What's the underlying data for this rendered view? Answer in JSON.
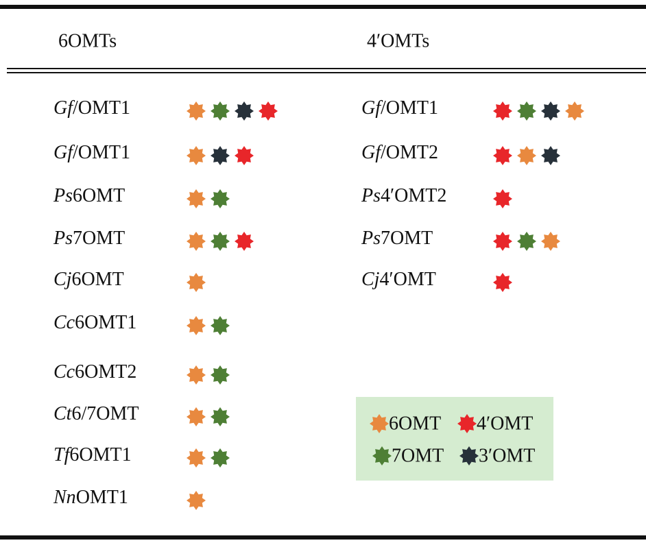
{
  "header": {
    "left": "6OMTs",
    "right": "4′OMTs"
  },
  "legend": [
    {
      "label": "6OMT",
      "color": "#e8893f"
    },
    {
      "label": "4′OMT",
      "color": "#e8262a"
    },
    {
      "label": "7OMT",
      "color": "#4e7f35"
    },
    {
      "label": "3′OMT",
      "color": "#27313a"
    }
  ],
  "left_rows": [
    {
      "name": [
        {
          "italic": "Gf"
        },
        {
          "text": "/OMT1"
        }
      ],
      "stars": [
        0,
        2,
        3,
        1
      ]
    },
    {
      "name": [
        {
          "italic": "Gf"
        },
        {
          "text": "/OMT1"
        }
      ],
      "stars": [
        0,
        3,
        1
      ]
    },
    {
      "name": [
        {
          "italic": "Ps"
        },
        {
          "text": "6OMT"
        }
      ],
      "stars": [
        0,
        2
      ]
    },
    {
      "name": [
        {
          "italic": "Ps"
        },
        {
          "text": "7OMT"
        }
      ],
      "stars": [
        0,
        2,
        1
      ]
    },
    {
      "name": [
        {
          "italic": "Cj"
        },
        {
          "text": "6OMT"
        }
      ],
      "stars": [
        0
      ]
    },
    {
      "name": [
        {
          "italic": "Cc"
        },
        {
          "text": "6OMT1"
        }
      ],
      "stars": [
        0,
        2
      ]
    },
    {
      "name": [
        {
          "italic": "Cc"
        },
        {
          "text": "6OMT2"
        }
      ],
      "stars": [
        0,
        2
      ]
    },
    {
      "name": [
        {
          "italic": "Ct"
        },
        {
          "text": "6/7OMT"
        }
      ],
      "stars": [
        0,
        2
      ]
    },
    {
      "name": [
        {
          "italic": "Tf"
        },
        {
          "text": "6OMT1"
        }
      ],
      "stars": [
        0,
        2
      ]
    },
    {
      "name": [
        {
          "italic": "Nn"
        },
        {
          "text": "OMT1"
        }
      ],
      "stars": [
        0
      ]
    }
  ],
  "right_rows": [
    {
      "name": [
        {
          "italic": "Gf"
        },
        {
          "text": "/OMT1"
        }
      ],
      "stars": [
        1,
        2,
        3,
        0
      ]
    },
    {
      "name": [
        {
          "italic": "Gf"
        },
        {
          "text": "/OMT2"
        }
      ],
      "stars": [
        1,
        0,
        3
      ]
    },
    {
      "name": [
        {
          "italic": "Ps"
        },
        {
          "text": "4′OMT2"
        }
      ],
      "stars": [
        1
      ]
    },
    {
      "name": [
        {
          "italic": "Ps"
        },
        {
          "text": "7OMT"
        }
      ],
      "stars": [
        1,
        2,
        0
      ]
    },
    {
      "name": [
        {
          "italic": "Cj"
        },
        {
          "text": "4′OMT"
        }
      ],
      "stars": [
        1
      ]
    }
  ]
}
